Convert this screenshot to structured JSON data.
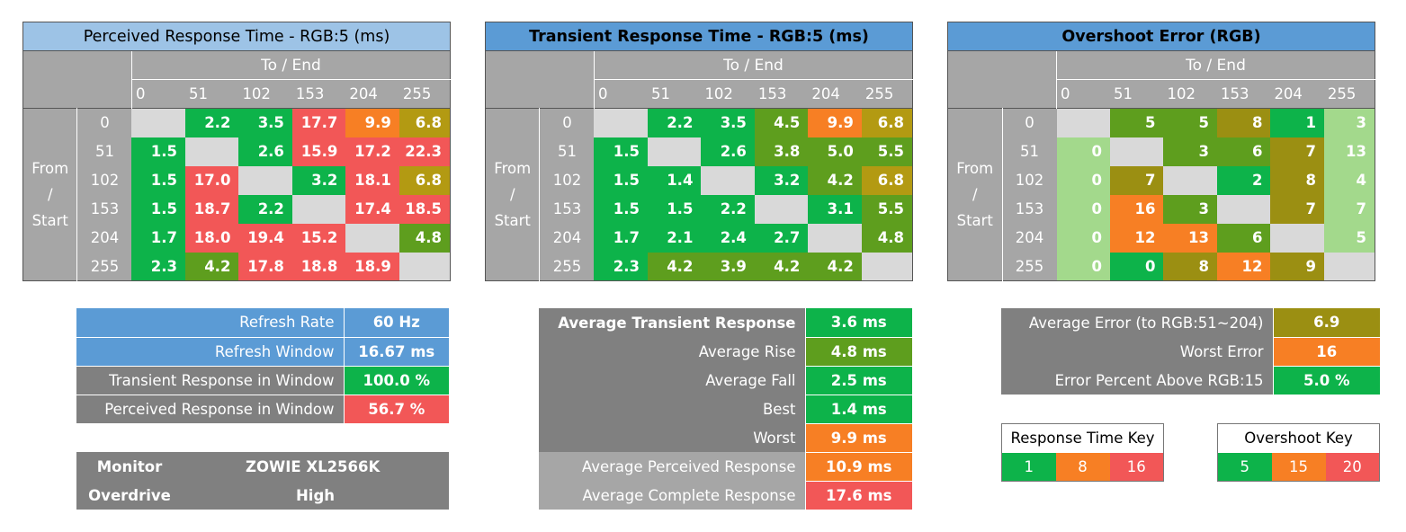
{
  "colors": {
    "green": "#0db34a",
    "olive_green": "#5e9e1e",
    "olive": "#9b8f12",
    "dark_gold": "#b39a12",
    "orange": "#f77f24",
    "red": "#f25757",
    "pale_green": "#a3d98c",
    "header_light_blue": "#9dc3e6",
    "header_blue": "#5b9bd5",
    "gray": "#a6a6a6",
    "dark_gray": "#808080",
    "diag": "#d9d9d9"
  },
  "chart_data": [
    {
      "type": "heatmap",
      "title": "Perceived Response Time - RGB:5 (ms)",
      "xlabel": "To / End",
      "ylabel": "From / Start",
      "columns": [
        "0",
        "51",
        "102",
        "153",
        "204",
        "255"
      ],
      "rows": [
        {
          "label": "0",
          "cells": [
            {
              "v": "",
              "c": "diag"
            },
            {
              "v": "2.2",
              "c": "green"
            },
            {
              "v": "3.5",
              "c": "green"
            },
            {
              "v": "17.7",
              "c": "red"
            },
            {
              "v": "9.9",
              "c": "orange"
            },
            {
              "v": "6.8",
              "c": "dark_gold"
            }
          ]
        },
        {
          "label": "51",
          "cells": [
            {
              "v": "1.5",
              "c": "green"
            },
            {
              "v": "",
              "c": "diag"
            },
            {
              "v": "2.6",
              "c": "green"
            },
            {
              "v": "15.9",
              "c": "red"
            },
            {
              "v": "17.2",
              "c": "red"
            },
            {
              "v": "22.3",
              "c": "red"
            }
          ]
        },
        {
          "label": "102",
          "cells": [
            {
              "v": "1.5",
              "c": "green"
            },
            {
              "v": "17.0",
              "c": "red"
            },
            {
              "v": "",
              "c": "diag"
            },
            {
              "v": "3.2",
              "c": "green"
            },
            {
              "v": "18.1",
              "c": "red"
            },
            {
              "v": "6.8",
              "c": "dark_gold"
            }
          ]
        },
        {
          "label": "153",
          "cells": [
            {
              "v": "1.5",
              "c": "green"
            },
            {
              "v": "18.7",
              "c": "red"
            },
            {
              "v": "2.2",
              "c": "green"
            },
            {
              "v": "",
              "c": "diag"
            },
            {
              "v": "17.4",
              "c": "red"
            },
            {
              "v": "18.5",
              "c": "red"
            }
          ]
        },
        {
          "label": "204",
          "cells": [
            {
              "v": "1.7",
              "c": "green"
            },
            {
              "v": "18.0",
              "c": "red"
            },
            {
              "v": "19.4",
              "c": "red"
            },
            {
              "v": "15.2",
              "c": "red"
            },
            {
              "v": "",
              "c": "diag"
            },
            {
              "v": "4.8",
              "c": "olive_green"
            }
          ]
        },
        {
          "label": "255",
          "cells": [
            {
              "v": "2.3",
              "c": "green"
            },
            {
              "v": "4.2",
              "c": "olive_green"
            },
            {
              "v": "17.8",
              "c": "red"
            },
            {
              "v": "18.8",
              "c": "red"
            },
            {
              "v": "18.9",
              "c": "red"
            },
            {
              "v": "",
              "c": "diag"
            }
          ]
        }
      ]
    },
    {
      "type": "heatmap",
      "title": "Transient Response Time - RGB:5 (ms)",
      "xlabel": "To / End",
      "ylabel": "From / Start",
      "columns": [
        "0",
        "51",
        "102",
        "153",
        "204",
        "255"
      ],
      "rows": [
        {
          "label": "0",
          "cells": [
            {
              "v": "",
              "c": "diag"
            },
            {
              "v": "2.2",
              "c": "green"
            },
            {
              "v": "3.5",
              "c": "green"
            },
            {
              "v": "4.5",
              "c": "olive_green"
            },
            {
              "v": "9.9",
              "c": "orange"
            },
            {
              "v": "6.8",
              "c": "dark_gold"
            }
          ]
        },
        {
          "label": "51",
          "cells": [
            {
              "v": "1.5",
              "c": "green"
            },
            {
              "v": "",
              "c": "diag"
            },
            {
              "v": "2.6",
              "c": "green"
            },
            {
              "v": "3.8",
              "c": "olive_green"
            },
            {
              "v": "5.0",
              "c": "olive_green"
            },
            {
              "v": "5.5",
              "c": "olive_green"
            }
          ]
        },
        {
          "label": "102",
          "cells": [
            {
              "v": "1.5",
              "c": "green"
            },
            {
              "v": "1.4",
              "c": "green"
            },
            {
              "v": "",
              "c": "diag"
            },
            {
              "v": "3.2",
              "c": "green"
            },
            {
              "v": "4.2",
              "c": "olive_green"
            },
            {
              "v": "6.8",
              "c": "dark_gold"
            }
          ]
        },
        {
          "label": "153",
          "cells": [
            {
              "v": "1.5",
              "c": "green"
            },
            {
              "v": "1.5",
              "c": "green"
            },
            {
              "v": "2.2",
              "c": "green"
            },
            {
              "v": "",
              "c": "diag"
            },
            {
              "v": "3.1",
              "c": "green"
            },
            {
              "v": "5.5",
              "c": "olive_green"
            }
          ]
        },
        {
          "label": "204",
          "cells": [
            {
              "v": "1.7",
              "c": "green"
            },
            {
              "v": "2.1",
              "c": "green"
            },
            {
              "v": "2.4",
              "c": "green"
            },
            {
              "v": "2.7",
              "c": "green"
            },
            {
              "v": "",
              "c": "diag"
            },
            {
              "v": "4.8",
              "c": "olive_green"
            }
          ]
        },
        {
          "label": "255",
          "cells": [
            {
              "v": "2.3",
              "c": "green"
            },
            {
              "v": "4.2",
              "c": "olive_green"
            },
            {
              "v": "3.9",
              "c": "olive_green"
            },
            {
              "v": "4.2",
              "c": "olive_green"
            },
            {
              "v": "4.2",
              "c": "olive_green"
            },
            {
              "v": "",
              "c": "diag"
            }
          ]
        }
      ]
    },
    {
      "type": "heatmap",
      "title": "Overshoot Error (RGB)",
      "xlabel": "To / End",
      "ylabel": "From / Start",
      "columns": [
        "0",
        "51",
        "102",
        "153",
        "204",
        "255"
      ],
      "rows": [
        {
          "label": "0",
          "cells": [
            {
              "v": "",
              "c": "diag"
            },
            {
              "v": "5",
              "c": "olive_green"
            },
            {
              "v": "5",
              "c": "olive_green"
            },
            {
              "v": "8",
              "c": "olive"
            },
            {
              "v": "1",
              "c": "green"
            },
            {
              "v": "3",
              "c": "pale_green"
            }
          ]
        },
        {
          "label": "51",
          "cells": [
            {
              "v": "0",
              "c": "pale_green"
            },
            {
              "v": "",
              "c": "diag"
            },
            {
              "v": "3",
              "c": "olive_green"
            },
            {
              "v": "6",
              "c": "olive_green"
            },
            {
              "v": "7",
              "c": "olive"
            },
            {
              "v": "13",
              "c": "pale_green"
            }
          ]
        },
        {
          "label": "102",
          "cells": [
            {
              "v": "0",
              "c": "pale_green"
            },
            {
              "v": "7",
              "c": "olive"
            },
            {
              "v": "",
              "c": "diag"
            },
            {
              "v": "2",
              "c": "green"
            },
            {
              "v": "8",
              "c": "olive"
            },
            {
              "v": "4",
              "c": "pale_green"
            }
          ]
        },
        {
          "label": "153",
          "cells": [
            {
              "v": "0",
              "c": "pale_green"
            },
            {
              "v": "16",
              "c": "orange"
            },
            {
              "v": "3",
              "c": "olive_green"
            },
            {
              "v": "",
              "c": "diag"
            },
            {
              "v": "7",
              "c": "olive"
            },
            {
              "v": "7",
              "c": "pale_green"
            }
          ]
        },
        {
          "label": "204",
          "cells": [
            {
              "v": "0",
              "c": "pale_green"
            },
            {
              "v": "12",
              "c": "orange"
            },
            {
              "v": "13",
              "c": "orange"
            },
            {
              "v": "6",
              "c": "olive_green"
            },
            {
              "v": "",
              "c": "diag"
            },
            {
              "v": "5",
              "c": "pale_green"
            }
          ]
        },
        {
          "label": "255",
          "cells": [
            {
              "v": "0",
              "c": "pale_green"
            },
            {
              "v": "0",
              "c": "green"
            },
            {
              "v": "8",
              "c": "olive"
            },
            {
              "v": "12",
              "c": "orange"
            },
            {
              "v": "9",
              "c": "olive"
            },
            {
              "v": "",
              "c": "diag"
            }
          ]
        }
      ]
    }
  ],
  "refresh_table": [
    {
      "label": "Refresh Rate",
      "value": "60 Hz",
      "label_color": "header_blue",
      "value_color": "header_blue"
    },
    {
      "label": "Refresh Window",
      "value": "16.67 ms",
      "label_color": "header_blue",
      "value_color": "header_blue"
    },
    {
      "label": "Transient Response in Window",
      "value": "100.0 %",
      "label_color": "dark_gray",
      "value_color": "green"
    },
    {
      "label": "Perceived Response in Window",
      "value": "56.7 %",
      "label_color": "dark_gray",
      "value_color": "red"
    }
  ],
  "monitor_table": {
    "monitor_label": "Monitor",
    "monitor_value": "ZOWIE XL2566K",
    "overdrive_label": "Overdrive",
    "overdrive_value": "High"
  },
  "transient_summary": [
    {
      "label": "Average Transient Response",
      "value": "3.6 ms",
      "value_color": "green",
      "bold": true
    },
    {
      "label": "Average Rise",
      "value": "4.8 ms",
      "value_color": "olive_green",
      "bold": false
    },
    {
      "label": "Average Fall",
      "value": "2.5 ms",
      "value_color": "green",
      "bold": false
    },
    {
      "label": "Best",
      "value": "1.4 ms",
      "value_color": "green",
      "bold": false
    },
    {
      "label": "Worst",
      "value": "9.9 ms",
      "value_color": "orange",
      "bold": false
    },
    {
      "label": "Average Perceived Response",
      "value": "10.9 ms",
      "value_color": "orange",
      "bold": false
    },
    {
      "label": "Average Complete Response",
      "value": "17.6 ms",
      "value_color": "red",
      "bold": false
    }
  ],
  "error_summary": [
    {
      "label": "Average Error (to RGB:51~204)",
      "value": "6.9",
      "value_color": "olive"
    },
    {
      "label": "Worst Error",
      "value": "16",
      "value_color": "orange"
    },
    {
      "label": "Error Percent Above RGB:15",
      "value": "5.0 %",
      "value_color": "green"
    }
  ],
  "response_key": {
    "title": "Response Time Key",
    "items": [
      {
        "v": "1",
        "c": "green"
      },
      {
        "v": "8",
        "c": "orange"
      },
      {
        "v": "16",
        "c": "red"
      }
    ]
  },
  "overshoot_key": {
    "title": "Overshoot Key",
    "items": [
      {
        "v": "5",
        "c": "green"
      },
      {
        "v": "15",
        "c": "orange"
      },
      {
        "v": "20",
        "c": "red"
      }
    ]
  }
}
